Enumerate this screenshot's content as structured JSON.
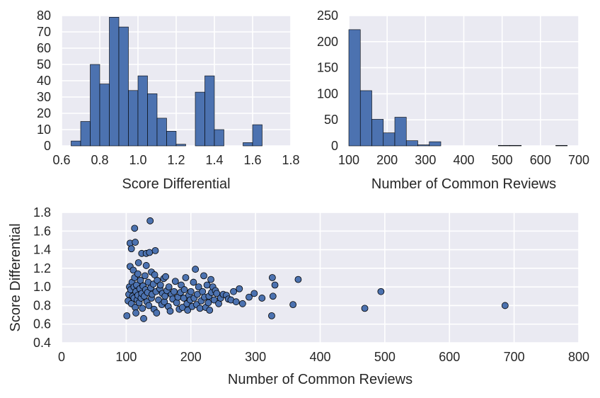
{
  "figure": {
    "background": "#ffffff",
    "axes_bg": "#eaeaf2",
    "grid": "#ffffff",
    "bar_color": "#4c72b0",
    "edge_color": "#000000"
  },
  "chart_data": [
    {
      "type": "bar",
      "id": "hist_score",
      "xlabel": "Score Differential",
      "ylabel": "",
      "xlim": [
        0.6,
        1.8
      ],
      "ylim": [
        0,
        80
      ],
      "xticks": [
        "0.6",
        "0.8",
        "1.0",
        "1.2",
        "1.4",
        "1.6",
        "1.8"
      ],
      "yticks": [
        "0",
        "10",
        "20",
        "30",
        "40",
        "50",
        "60",
        "70",
        "80"
      ],
      "bin_edges": [
        0.65,
        0.7,
        0.75,
        0.8,
        0.85,
        0.9,
        0.95,
        1.0,
        1.05,
        1.1,
        1.15,
        1.2,
        1.25,
        1.3,
        1.35,
        1.4,
        1.45,
        1.5,
        1.55,
        1.6,
        1.65,
        1.7
      ],
      "values": [
        3,
        15,
        50,
        38,
        79,
        73,
        34,
        43,
        32,
        17,
        9,
        1,
        0,
        33,
        43,
        10,
        0,
        0,
        2,
        13,
        0
      ],
      "grid": true
    },
    {
      "type": "bar",
      "id": "hist_reviews",
      "xlabel": "Number of Common Reviews",
      "ylabel": "",
      "xlim": [
        100,
        700
      ],
      "ylim": [
        0,
        250
      ],
      "xticks": [
        "100",
        "200",
        "300",
        "400",
        "500",
        "600",
        "700"
      ],
      "yticks": [
        "0",
        "50",
        "100",
        "150",
        "200",
        "250"
      ],
      "bin_edges": [
        100,
        130,
        160,
        190,
        220,
        250,
        280,
        310,
        340,
        370,
        400,
        430,
        460,
        490,
        520,
        550,
        580,
        610,
        640,
        670,
        700
      ],
      "values": [
        223,
        106,
        51,
        25,
        55,
        10,
        2,
        8,
        0,
        0,
        0,
        0,
        0,
        1,
        1,
        0,
        0,
        0,
        1,
        0
      ],
      "grid": true
    },
    {
      "type": "scatter",
      "id": "scatter",
      "xlabel": "Number of Common Reviews",
      "ylabel": "Score Differential",
      "xlim": [
        0,
        800
      ],
      "ylim": [
        0.4,
        1.8
      ],
      "xticks": [
        "0",
        "100",
        "200",
        "300",
        "400",
        "500",
        "600",
        "700",
        "800"
      ],
      "yticks": [
        "0.4",
        "0.6",
        "0.8",
        "1.0",
        "1.2",
        "1.4",
        "1.6",
        "1.8"
      ],
      "grid": true,
      "points": [
        [
          101,
          0.69
        ],
        [
          103,
          0.85
        ],
        [
          104,
          0.92
        ],
        [
          105,
          1.0
        ],
        [
          106,
          1.22
        ],
        [
          106,
          1.47
        ],
        [
          107,
          0.97
        ],
        [
          108,
          1.41
        ],
        [
          108,
          0.82
        ],
        [
          109,
          1.05
        ],
        [
          110,
          0.9
        ],
        [
          111,
          1.18
        ],
        [
          112,
          0.88
        ],
        [
          112,
          1.0
        ],
        [
          113,
          1.1
        ],
        [
          113,
          1.63
        ],
        [
          114,
          1.48
        ],
        [
          114,
          0.78
        ],
        [
          115,
          0.72
        ],
        [
          115,
          0.95
        ],
        [
          116,
          1.02
        ],
        [
          117,
          0.86
        ],
        [
          118,
          1.14
        ],
        [
          118,
          0.91
        ],
        [
          119,
          1.26
        ],
        [
          120,
          0.83
        ],
        [
          121,
          0.98
        ],
        [
          122,
          1.07
        ],
        [
          123,
          0.88
        ],
        [
          124,
          0.93
        ],
        [
          124,
          1.36
        ],
        [
          125,
          0.77
        ],
        [
          126,
          1.01
        ],
        [
          127,
          0.66
        ],
        [
          128,
          0.9
        ],
        [
          129,
          1.12
        ],
        [
          130,
          0.97
        ],
        [
          131,
          1.23
        ],
        [
          131,
          1.36
        ],
        [
          132,
          0.84
        ],
        [
          133,
          0.94
        ],
        [
          134,
          1.05
        ],
        [
          135,
          0.8
        ],
        [
          136,
          1.37
        ],
        [
          137,
          1.71
        ],
        [
          138,
          0.99
        ],
        [
          139,
          1.16
        ],
        [
          139,
          0.88
        ],
        [
          140,
          0.92
        ],
        [
          142,
          1.03
        ],
        [
          143,
          0.76
        ],
        [
          144,
          1.13
        ],
        [
          145,
          1.39
        ],
        [
          146,
          0.95
        ],
        [
          147,
          0.72
        ],
        [
          148,
          1.07
        ],
        [
          150,
          0.86
        ],
        [
          152,
          0.98
        ],
        [
          153,
          1.02
        ],
        [
          155,
          0.81
        ],
        [
          156,
          0.93
        ],
        [
          158,
          1.09
        ],
        [
          159,
          0.84
        ],
        [
          160,
          0.9
        ],
        [
          161,
          1.11
        ],
        [
          163,
          0.96
        ],
        [
          165,
          0.79
        ],
        [
          166,
          1.0
        ],
        [
          168,
          0.74
        ],
        [
          170,
          0.92
        ],
        [
          172,
          0.87
        ],
        [
          174,
          0.95
        ],
        [
          176,
          1.06
        ],
        [
          178,
          0.83
        ],
        [
          180,
          0.89
        ],
        [
          182,
          0.76
        ],
        [
          184,
          0.94
        ],
        [
          185,
          1.02
        ],
        [
          187,
          0.78
        ],
        [
          189,
          0.88
        ],
        [
          190,
          0.97
        ],
        [
          192,
          1.1
        ],
        [
          194,
          0.82
        ],
        [
          195,
          0.75
        ],
        [
          197,
          0.91
        ],
        [
          199,
          0.86
        ],
        [
          200,
          0.95
        ],
        [
          202,
          0.79
        ],
        [
          204,
          1.05
        ],
        [
          205,
          0.88
        ],
        [
          207,
          1.19
        ],
        [
          209,
          0.81
        ],
        [
          210,
          0.92
        ],
        [
          212,
          1.0
        ],
        [
          214,
          0.77
        ],
        [
          216,
          0.85
        ],
        [
          218,
          0.95
        ],
        [
          220,
          1.12
        ],
        [
          221,
          0.89
        ],
        [
          223,
          0.78
        ],
        [
          225,
          1.02
        ],
        [
          227,
          0.83
        ],
        [
          228,
          0.9
        ],
        [
          229,
          0.75
        ],
        [
          231,
          1.08
        ],
        [
          232,
          0.94
        ],
        [
          234,
          1.0
        ],
        [
          236,
          0.86
        ],
        [
          238,
          0.96
        ],
        [
          240,
          0.93
        ],
        [
          243,
          0.82
        ],
        [
          246,
          0.88
        ],
        [
          250,
          0.92
        ],
        [
          255,
          0.91
        ],
        [
          258,
          0.87
        ],
        [
          262,
          0.86
        ],
        [
          266,
          0.95
        ],
        [
          270,
          0.84
        ],
        [
          275,
          0.98
        ],
        [
          280,
          0.82
        ],
        [
          290,
          0.89
        ],
        [
          298,
          0.93
        ],
        [
          310,
          0.88
        ],
        [
          325,
          0.69
        ],
        [
          326,
          1.1
        ],
        [
          327,
          0.9
        ],
        [
          330,
          1.02
        ],
        [
          358,
          0.81
        ],
        [
          366,
          1.08
        ],
        [
          469,
          0.77
        ],
        [
          494,
          0.95
        ],
        [
          686,
          0.8
        ]
      ]
    }
  ]
}
